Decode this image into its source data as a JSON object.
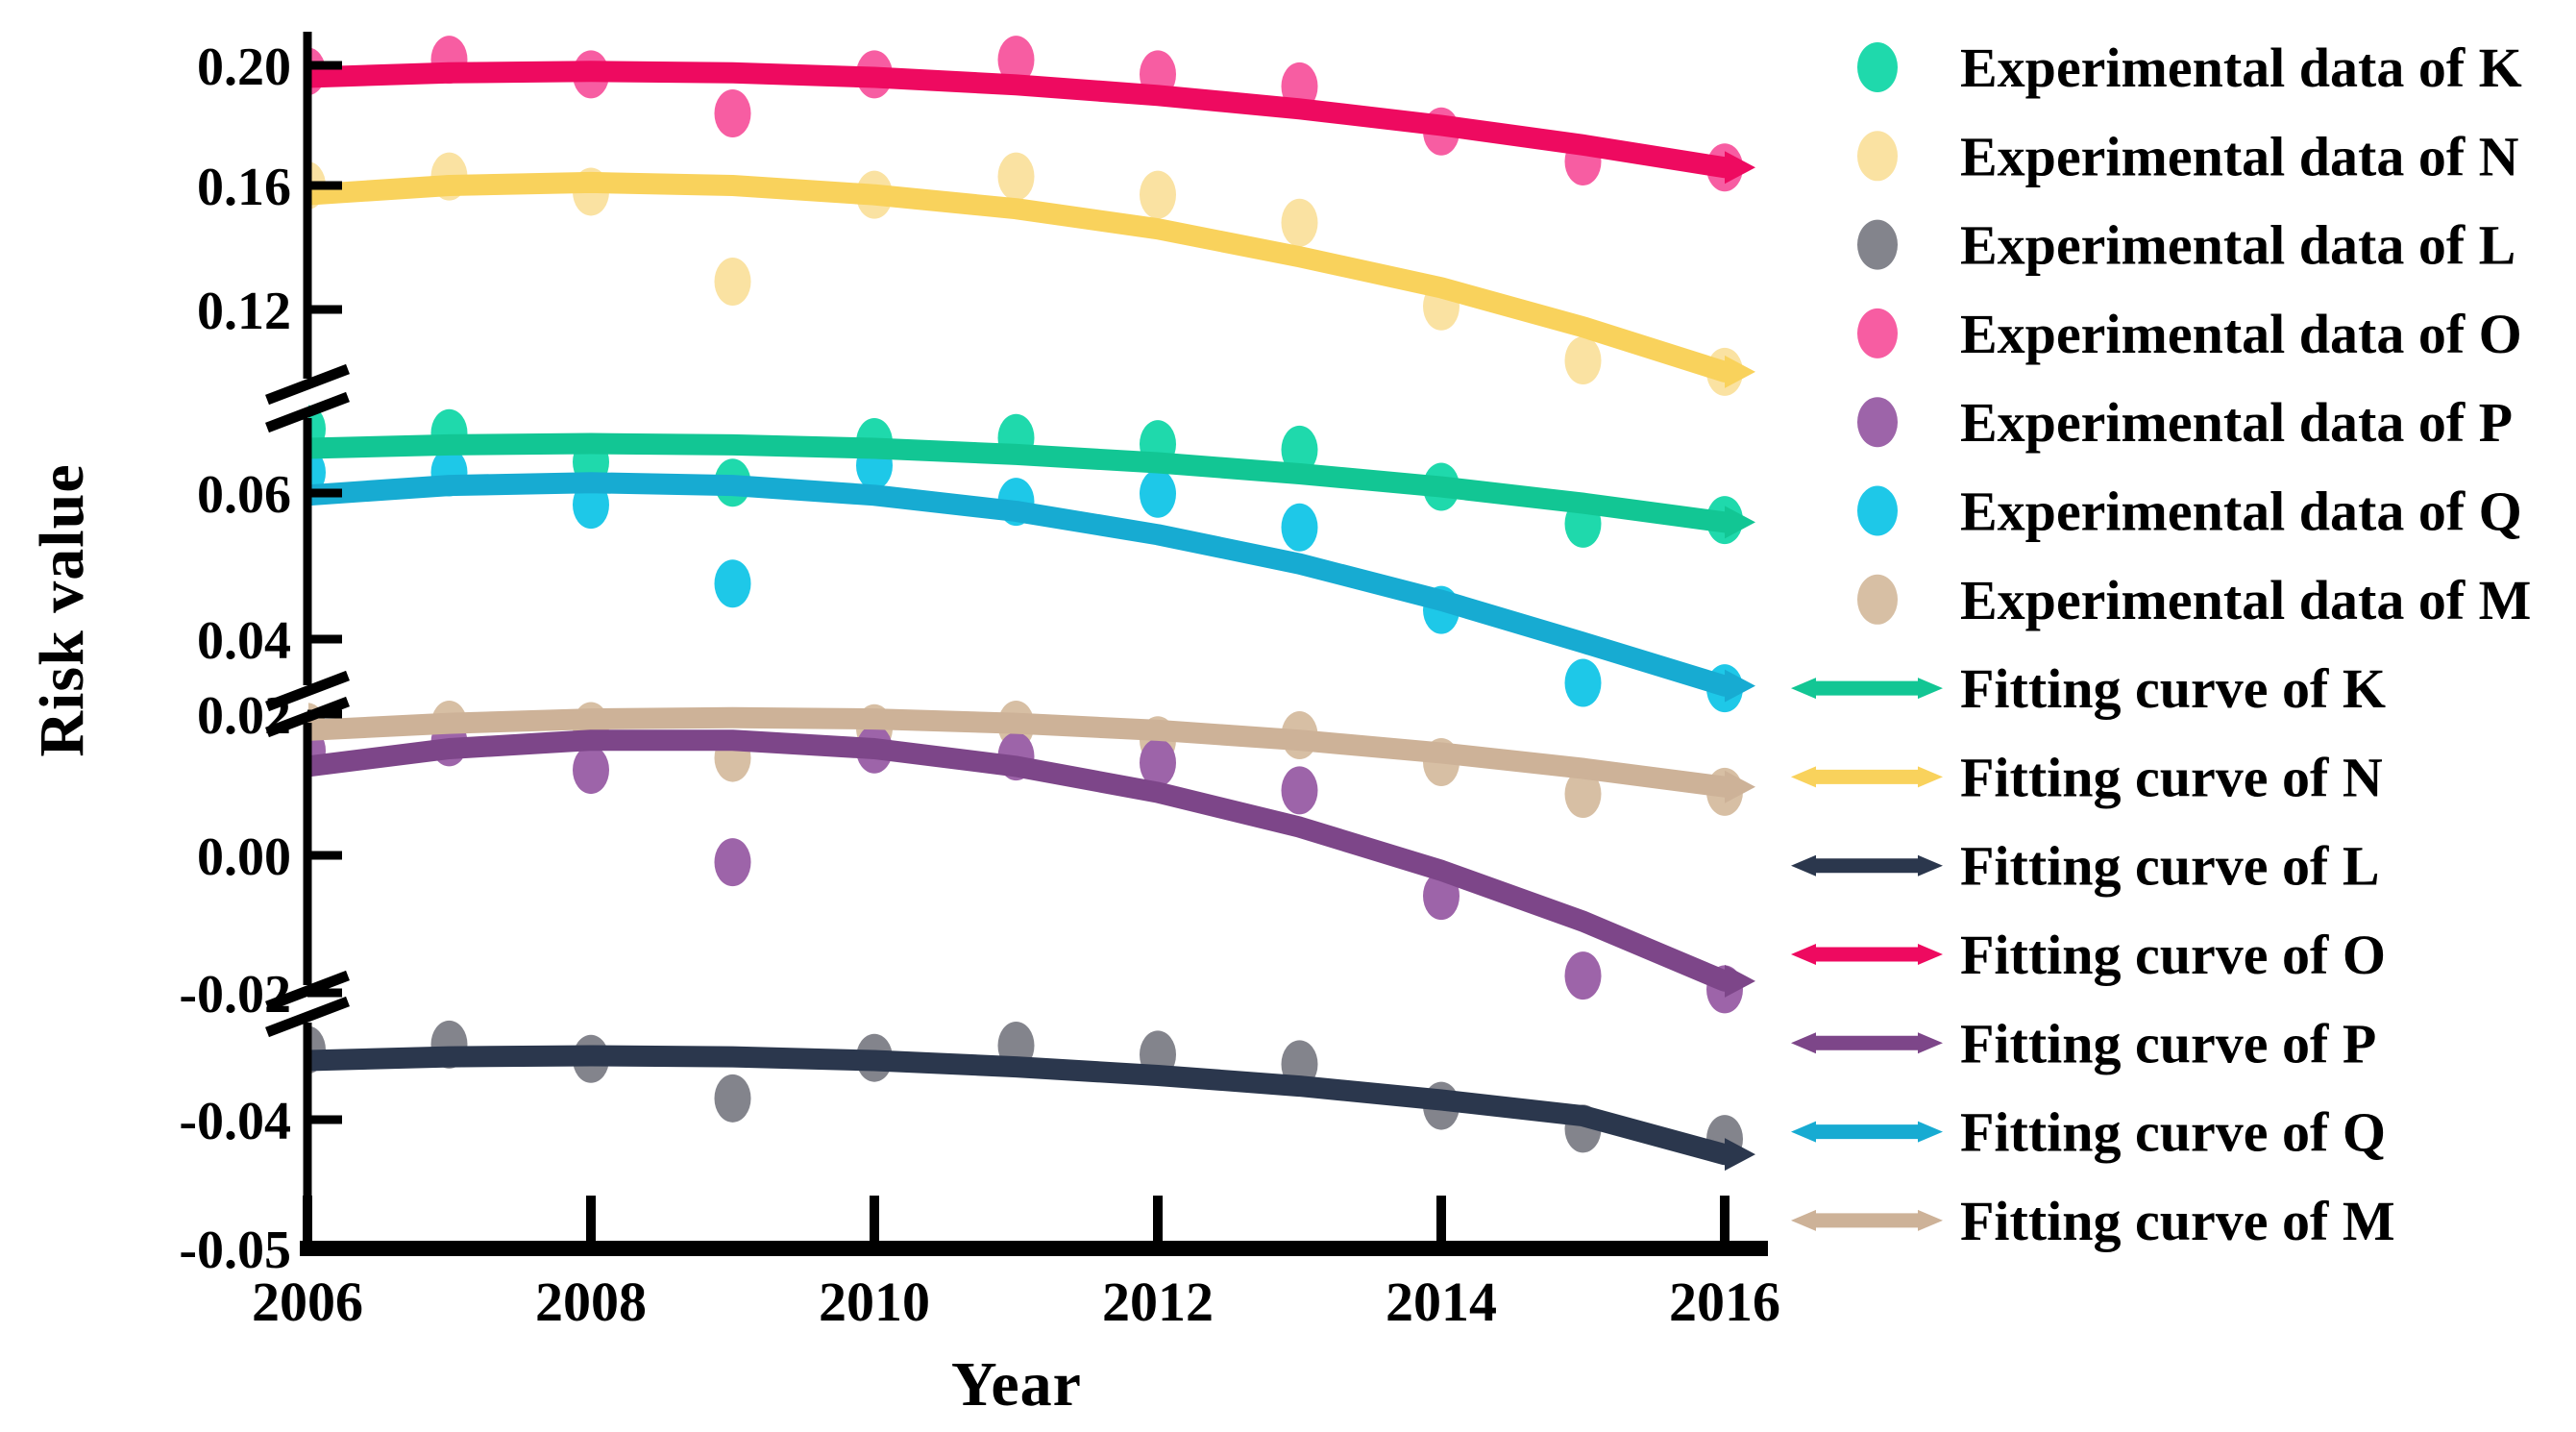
{
  "chart_data": {
    "type": "scatter",
    "title": "",
    "xlabel": "Year",
    "ylabel": "Risk value",
    "x_axis": {
      "tick_values": [
        2006,
        2008,
        2010,
        2012,
        2014,
        2016
      ],
      "tick_labels": [
        "2006",
        "2008",
        "2010",
        "2012",
        "2014",
        "2016"
      ],
      "range": [
        2006,
        2016
      ]
    },
    "y_axis": {
      "tick_values": [
        0.2,
        0.16,
        0.12,
        0.06,
        0.04,
        0.02,
        0.0,
        -0.02,
        -0.04,
        -0.05
      ],
      "tick_labels": [
        "0.20",
        "0.16",
        "0.12",
        "0.06",
        "0.04",
        "0.02",
        "0.00",
        "-0.02",
        "-0.04",
        "-0.05"
      ],
      "breaks": [
        {
          "between_above": 0.12,
          "between_below": 0.06
        },
        {
          "between_above": 0.04,
          "between_below": 0.02
        },
        {
          "between_above": -0.02,
          "between_below": -0.04
        }
      ],
      "grid": false
    },
    "years": [
      2006,
      2007,
      2008,
      2009,
      2010,
      2011,
      2012,
      2013,
      2014,
      2015,
      2016
    ],
    "series": [
      {
        "name": "O",
        "dot_color": "#f75da2",
        "line_color": "#ee0a60",
        "experimental": [
          0.198,
          0.202,
          0.197,
          0.184,
          0.197,
          0.202,
          0.197,
          0.193,
          0.178,
          0.168,
          0.166
        ],
        "fitting": [
          0.196,
          0.1975,
          0.198,
          0.1975,
          0.196,
          0.1935,
          0.19,
          0.1855,
          0.18,
          0.1735,
          0.166
        ]
      },
      {
        "name": "N",
        "dot_color": "#fae2a2",
        "line_color": "#f9d25c",
        "experimental": [
          0.16,
          0.163,
          0.158,
          0.129,
          0.157,
          0.163,
          0.157,
          0.148,
          0.121,
          0.104,
          0.1
        ],
        "fitting": [
          0.157,
          0.16,
          0.161,
          0.16,
          0.157,
          0.1525,
          0.146,
          0.137,
          0.127,
          0.1145,
          0.1
        ]
      },
      {
        "name": "K",
        "dot_color": "#1fd9ac",
        "line_color": "#12c694",
        "experimental": [
          0.0693,
          0.0687,
          0.0645,
          0.0615,
          0.0674,
          0.068,
          0.0671,
          0.0663,
          0.0609,
          0.0558,
          0.0563
        ],
        "fitting": [
          0.0665,
          0.067,
          0.0672,
          0.067,
          0.0665,
          0.0656,
          0.0644,
          0.0628,
          0.0609,
          0.0586,
          0.056
        ]
      },
      {
        "name": "Q",
        "dot_color": "#1ec8e8",
        "line_color": "#17abd2",
        "experimental": [
          0.063,
          0.063,
          0.0584,
          0.0476,
          0.064,
          0.0588,
          0.0599,
          0.0553,
          0.044,
          0.0337,
          0.0315
        ],
        "fitting": [
          0.0597,
          0.0611,
          0.0615,
          0.0611,
          0.0597,
          0.0575,
          0.0543,
          0.0503,
          0.0453,
          0.0395,
          0.0327
        ]
      },
      {
        "name": "M",
        "dot_color": "#d7bfa4",
        "line_color": "#cdb298",
        "experimental": [
          0.0182,
          0.0185,
          0.0183,
          0.0138,
          0.018,
          0.0185,
          0.0163,
          0.017,
          0.0132,
          0.0087,
          0.009
        ],
        "fitting": [
          0.0177,
          0.0187,
          0.0193,
          0.0195,
          0.0193,
          0.0187,
          0.0177,
          0.0163,
          0.0145,
          0.0123,
          0.0097
        ]
      },
      {
        "name": "P",
        "dot_color": "#9d64a9",
        "line_color": "#7d4689",
        "experimental": [
          0.0148,
          0.016,
          0.0121,
          -0.001,
          0.015,
          0.014,
          0.0131,
          0.0092,
          -0.0059,
          -0.0175,
          -0.0195
        ],
        "fitting": [
          0.0126,
          0.0151,
          0.0163,
          0.0163,
          0.0151,
          0.0126,
          0.0089,
          0.004,
          -0.0022,
          -0.0096,
          -0.0183
        ]
      },
      {
        "name": "L",
        "dot_color": "#83848c",
        "line_color": "#2b374d",
        "experimental": [
          -0.0269,
          -0.0259,
          -0.0286,
          -0.036,
          -0.0284,
          -0.0261,
          -0.0278,
          -0.0296,
          -0.0374,
          -0.0407,
          -0.0415
        ],
        "fitting": [
          -0.0289,
          -0.0282,
          -0.028,
          -0.0282,
          -0.0289,
          -0.0301,
          -0.0317,
          -0.0337,
          -0.0363,
          -0.0393,
          -0.0427
        ]
      }
    ],
    "legend": {
      "position": "right",
      "entries": [
        {
          "label": "Experimental data of K",
          "marker": "dot",
          "series": "K"
        },
        {
          "label": "Experimental data of N",
          "marker": "dot",
          "series": "N"
        },
        {
          "label": "Experimental data of L",
          "marker": "dot",
          "series": "L"
        },
        {
          "label": "Experimental data of O",
          "marker": "dot",
          "series": "O"
        },
        {
          "label": "Experimental data of P",
          "marker": "dot",
          "series": "P"
        },
        {
          "label": "Experimental data of Q",
          "marker": "dot",
          "series": "Q"
        },
        {
          "label": "Experimental data of M",
          "marker": "dot",
          "series": "M"
        },
        {
          "label": "Fitting curve of K",
          "marker": "line",
          "series": "K"
        },
        {
          "label": "Fitting curve of N",
          "marker": "line",
          "series": "N"
        },
        {
          "label": "Fitting curve of L",
          "marker": "line",
          "series": "L"
        },
        {
          "label": "Fitting curve of O",
          "marker": "line",
          "series": "O"
        },
        {
          "label": "Fitting curve of P",
          "marker": "line",
          "series": "P"
        },
        {
          "label": "Fitting curve of Q",
          "marker": "line",
          "series": "Q"
        },
        {
          "label": "Fitting curve of M",
          "marker": "line",
          "series": "M"
        }
      ]
    },
    "colors": {
      "axis": "#000000",
      "background": "#ffffff"
    }
  }
}
